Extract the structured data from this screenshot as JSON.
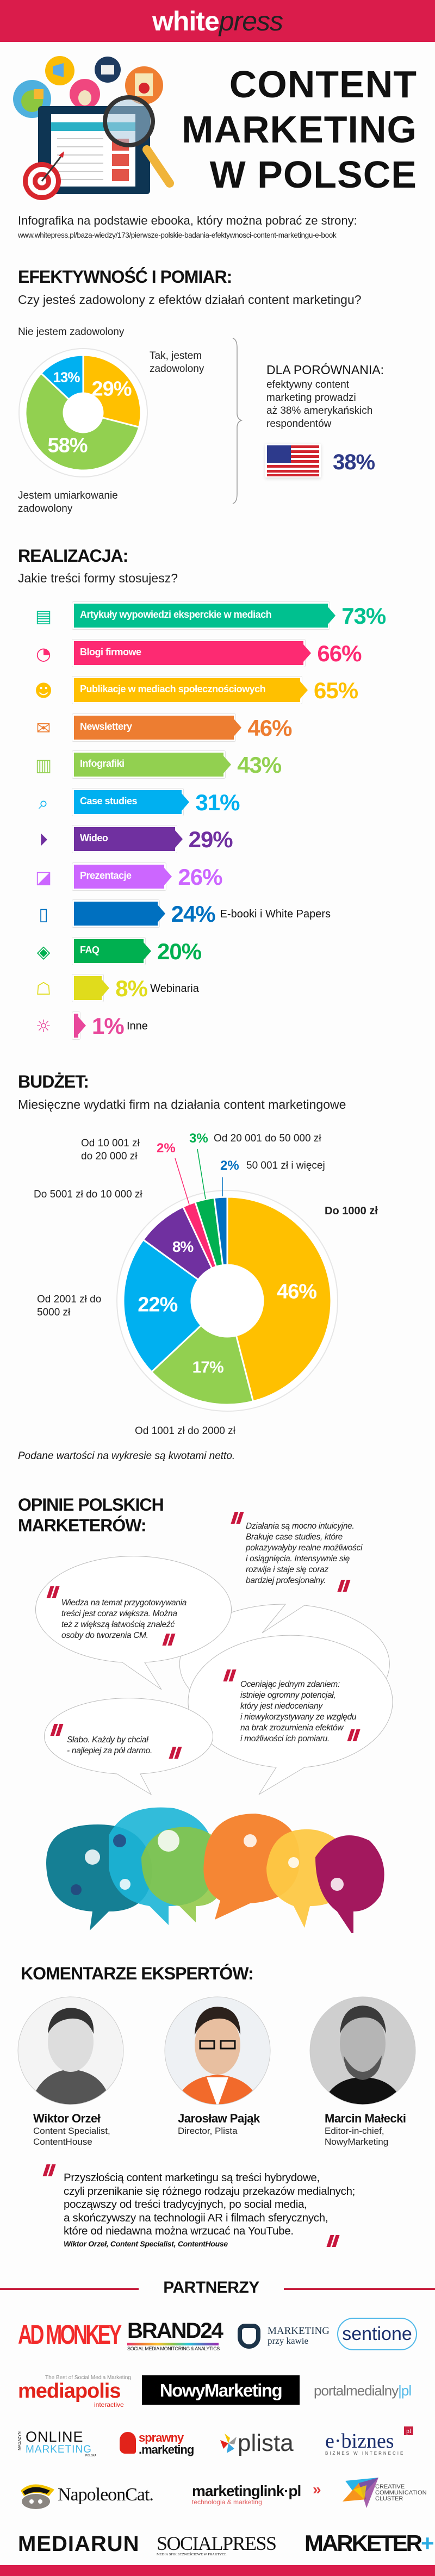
{
  "header": {
    "logo_white": "white",
    "logo_press": "press"
  },
  "hero": {
    "title_lines": [
      "CONTENT",
      "MARKETING",
      "W POLSCE"
    ],
    "intro": "Infografika na podstawie ebooka, który można pobrać ze strony:",
    "url": "www.whitepress.pl/baza-wiedzy/173/pierwsze-polskie-badania-efektywnosci-content-marketingu-e-book"
  },
  "efficiency": {
    "heading": "EFEKTYWNOŚĆ I POMIAR:",
    "question": "Czy jesteś zadowolony z efektów działań content marketingu?",
    "comparison": {
      "title": "DLA PORÓWNANIA:",
      "lines": [
        "efektywny content",
        "marketing prowadzi",
        "aż 38% amerykańskich",
        "respondentów"
      ],
      "value": "38%",
      "flag_icon": "us-flag-icon"
    }
  },
  "realizacja": {
    "heading": "REALIZACJA:",
    "question": "Jakie treści formy stosujesz?"
  },
  "budget": {
    "heading": "BUDŻET:",
    "subtitle": "Miesięczne wydatki firm na działania content marketingowe",
    "note": "Podane wartości na wykresie są kwotami netto."
  },
  "opinions": {
    "heading_lines": [
      "OPINIE POLSKICH",
      "MARKETERÓW:"
    ],
    "quotes": [
      {
        "lines": [
          "Działania są mocno intuicyjne.",
          "Brakuje case studies, które",
          "pokazywałyby realne możliwości",
          "i osiągnięcia. Intensywnie się",
          "rozwija i staje się coraz",
          "bardziej profesjonalny."
        ]
      },
      {
        "lines": [
          "Wiedza na temat przygotowywania",
          "treści jest coraz większa. Można",
          "też z większą łatwością znaleźć",
          "osoby do tworzenia CM."
        ]
      },
      {
        "lines": [
          "Oceniając jednym zdaniem:",
          "istnieje ogromny potencjał,",
          "który jest niedoceniany",
          "i niewykorzystywany ze względu",
          "na brak zrozumienia efektów",
          "i możliwości ich pomiaru."
        ]
      },
      {
        "lines": [
          "Słabo. Każdy by chciał",
          "- najlepiej za pół darmo."
        ]
      }
    ]
  },
  "experts": {
    "heading": "KOMENTARZE EKSPERTÓW:",
    "people": [
      {
        "name": "Wiktor Orzeł",
        "role_lines": [
          "Content Specialist,",
          "ContentHouse"
        ]
      },
      {
        "name": "Jarosław Pająk",
        "role_lines": [
          "Director, Plista"
        ]
      },
      {
        "name": "Marcin Małecki",
        "role_lines": [
          "Editor-in-chief,",
          "NowyMarketing"
        ]
      }
    ],
    "quote": {
      "lines": [
        "Przyszłością content marketingu są treści hybrydowe,",
        "czyli przenikanie się różnego rodzaju przekazów medialnych;",
        "począwszy od treści tradycyjnych, po social media,",
        "a skończywszy na technologii AR i filmach sferycznych,",
        "które od niedawna można wrzucać na YouTube."
      ],
      "attribution": "Wiktor Orzeł, Content Specialist, ContentHouse"
    }
  },
  "partners": {
    "heading": "PARTNERZY",
    "logos": {
      "admonkey": "AD MONKEY",
      "brand24": "BRAND24",
      "brand24_sub": "SOCIAL MEDIA MONITORING & ANALYTICS",
      "mpk": "MARKETING",
      "mpk_sub": "przy kawie",
      "sentione": "sentione",
      "mediapolis_top": "The Best of Social Media Marketing",
      "mediapolis": "mediapolis",
      "mediapolis_sub": "interactive",
      "nowymarketing": "NowyMarketing",
      "portal": "portalmedialny",
      "portal_pl": "pl",
      "om_mag": "MAGAZYN",
      "om_online": "ONLINE",
      "om_marketing": "MARKETING",
      "om_polska": "POLSKA",
      "sprawny": "sprawny",
      "sprawny_sub": ".marketing",
      "plista": "plista",
      "ebiznes": "e·biznes",
      "ebiznes_pl": "pl",
      "ebiznes_sub": "BIZNES W INTERNECIE",
      "napoleon": "NapoleonCat.",
      "mlink": "marketinglink·pl",
      "mlink_sub": "technologia & marketing",
      "ccc": [
        "CREATIVE",
        "COMMUNICATION",
        "CLUSTER"
      ],
      "mediarun": "MEDIARUN",
      "socialpress": "SOCIALPRESS",
      "socialpress_sub": "MEDIA SPOŁECZNOŚCIOWE W PRAKTYCE",
      "marketer": "MARKETER",
      "marketer_plus": "+"
    }
  },
  "chart_data": [
    {
      "type": "pie",
      "title": "Czy jesteś zadowolony z efektów działań content marketingu?",
      "categories": [
        "Tak, jestem zadowolony",
        "Jestem umiarkowanie zadowolony",
        "Nie jestem zadowolony"
      ],
      "values": [
        29,
        58,
        13
      ],
      "value_labels": [
        "29%",
        "58%",
        "13%"
      ],
      "colors": [
        "#ffc000",
        "#92d050",
        "#00b0f0"
      ],
      "donut": true
    },
    {
      "type": "bar",
      "title": "Jakie treści formy stosujesz?",
      "categories": [
        "Artykuły wypowiedzi eksperckie w mediach",
        "Blogi firmowe",
        "Publikacje w mediach społecznościowych",
        "Newslettery",
        "Infografiki",
        "Case studies",
        "Wideo",
        "Prezentacje",
        "E-booki i White Papers",
        "FAQ",
        "Webinaria",
        "Inne"
      ],
      "values": [
        73,
        66,
        65,
        46,
        43,
        31,
        29,
        26,
        24,
        20,
        8,
        1
      ],
      "value_labels": [
        "73%",
        "66%",
        "65%",
        "46%",
        "43%",
        "31%",
        "29%",
        "26%",
        "24%",
        "20%",
        "8%",
        "1%"
      ],
      "label_outside": [
        false,
        false,
        false,
        false,
        false,
        false,
        false,
        false,
        true,
        false,
        true,
        true
      ],
      "colors": [
        "#00c08f",
        "#fd2a72",
        "#ffc000",
        "#ed7d31",
        "#92d050",
        "#00b0f0",
        "#7030a0",
        "#cc66ff",
        "#0070c0",
        "#00b050",
        "#e0dc1c",
        "#e8479b"
      ],
      "icons": [
        "document-icon",
        "rss-icon",
        "users-icon",
        "envelope-icon",
        "infographic-icon",
        "case-study-icon",
        "play-icon",
        "presentation-icon",
        "ebook-icon",
        "layers-icon",
        "webinar-icon",
        "lightbulb-icon"
      ],
      "orientation": "horizontal"
    },
    {
      "type": "pie",
      "title": "Miesięczne wydatki firm na działania content marketingowe",
      "categories": [
        "Do 1000 zł",
        "Od 1001 zł do 2000 zł",
        "Od 2001 zł do 5000 zł",
        "Do 5001 zł do 10 000 zł",
        "Od 10 001 zł do 20 000 zł",
        "Od 20 001 do 50 000 zł",
        "50 001 zł i więcej"
      ],
      "values": [
        46,
        17,
        22,
        8,
        2,
        3,
        2
      ],
      "value_labels": [
        "46%",
        "17%",
        "22%",
        "8%",
        "2%",
        "3%",
        "2%"
      ],
      "colors": [
        "#ffc000",
        "#92d050",
        "#00b0f0",
        "#7030a0",
        "#fd2a72",
        "#00b050",
        "#0070c0"
      ],
      "donut": true
    }
  ]
}
